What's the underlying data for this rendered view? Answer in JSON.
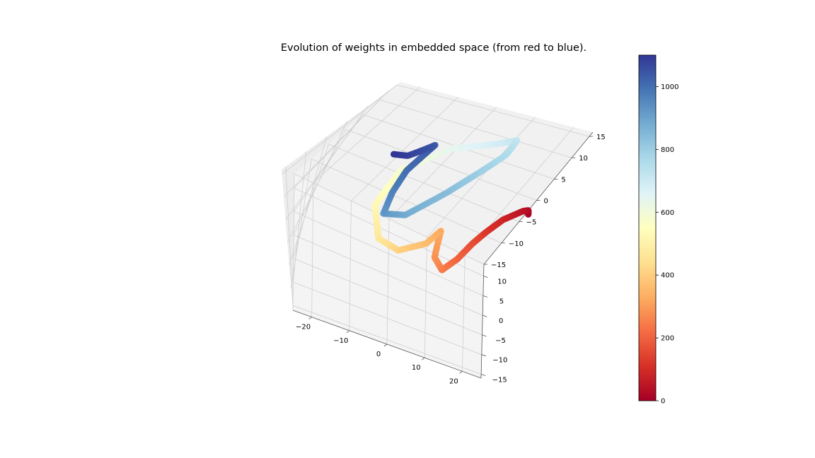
{
  "chart_data": {
    "type": "scatter",
    "projection": "3d",
    "title": "Evolution of weights in embedded space (from red to blue).",
    "colormap": "RdYlBu",
    "color_by": "step",
    "grid": true,
    "axes": {
      "x": {
        "lim": [
          -25,
          25
        ],
        "ticks": [
          -20,
          -10,
          0,
          10,
          20
        ]
      },
      "y": {
        "lim": [
          -16,
          13
        ],
        "ticks": [
          -15,
          -10,
          -5,
          0,
          5,
          10
        ]
      },
      "z": {
        "lim": [
          -15,
          16
        ],
        "ticks": [
          -15,
          -10,
          -5,
          0,
          5,
          10,
          15
        ]
      }
    },
    "colorbar": {
      "lim": [
        0,
        1100
      ],
      "ticks": [
        0,
        200,
        400,
        600,
        800,
        1000
      ]
    },
    "series": [
      {
        "points": [
          {
            "x": 24.1,
            "y": 4.1,
            "z": 5.0,
            "step": 0
          },
          {
            "x": 23.6,
            "y": 4.2,
            "z": 5.7,
            "step": 20
          },
          {
            "x": 22.6,
            "y": 3.4,
            "z": 6.0,
            "step": 40
          },
          {
            "x": 19.4,
            "y": 1.8,
            "z": 4.4,
            "step": 80
          },
          {
            "x": 17.0,
            "y": 0.3,
            "z": 1.8,
            "step": 120
          },
          {
            "x": 15.3,
            "y": -0.4,
            "z": -0.8,
            "step": 160
          },
          {
            "x": 13.5,
            "y": -1.1,
            "z": -4.5,
            "step": 200
          },
          {
            "x": 10.9,
            "y": -2.5,
            "z": -6.8,
            "step": 240
          },
          {
            "x": 8.1,
            "y": -2.7,
            "z": -4.5,
            "step": 280
          },
          {
            "x": 7.1,
            "y": -1.3,
            "z": 0.3,
            "step": 320
          },
          {
            "x": 5.0,
            "y": -2.5,
            "z": -2.4,
            "step": 360
          },
          {
            "x": -0.8,
            "y": -3.9,
            "z": -4.9,
            "step": 400
          },
          {
            "x": -6.2,
            "y": -5.1,
            "z": -2.7,
            "step": 460
          },
          {
            "x": -9.5,
            "y": -4.3,
            "z": 3.5,
            "step": 520
          },
          {
            "x": -7.1,
            "y": -2.3,
            "z": 11.7,
            "step": 580
          },
          {
            "x": 0.0,
            "y": 2.2,
            "z": 15.4,
            "step": 640
          },
          {
            "x": 7.1,
            "y": 6.3,
            "z": 14.8,
            "step": 680
          },
          {
            "x": 10.7,
            "y": 9.5,
            "z": 13.7,
            "step": 720
          },
          {
            "x": 10.8,
            "y": 11.3,
            "z": 8.2,
            "step": 760
          },
          {
            "x": 8.3,
            "y": 12.1,
            "z": 1.5,
            "step": 800
          },
          {
            "x": 5.4,
            "y": 11.3,
            "z": -3.5,
            "step": 840
          },
          {
            "x": 0.8,
            "y": 10.7,
            "z": -10.8,
            "step": 880
          },
          {
            "x": -3.9,
            "y": 10.2,
            "z": -12.0,
            "step": 920
          },
          {
            "x": -5.8,
            "y": 10.0,
            "z": -6.8,
            "step": 960
          },
          {
            "x": -6.6,
            "y": 10.4,
            "z": -1.3,
            "step": 1000
          },
          {
            "x": -5.3,
            "y": 11.1,
            "z": 5.6,
            "step": 1040
          },
          {
            "x": -8.5,
            "y": 12.0,
            "z": 0.3,
            "step": 1080
          },
          {
            "x": -11.3,
            "y": 12.4,
            "z": -0.9,
            "step": 1100
          }
        ]
      }
    ]
  }
}
